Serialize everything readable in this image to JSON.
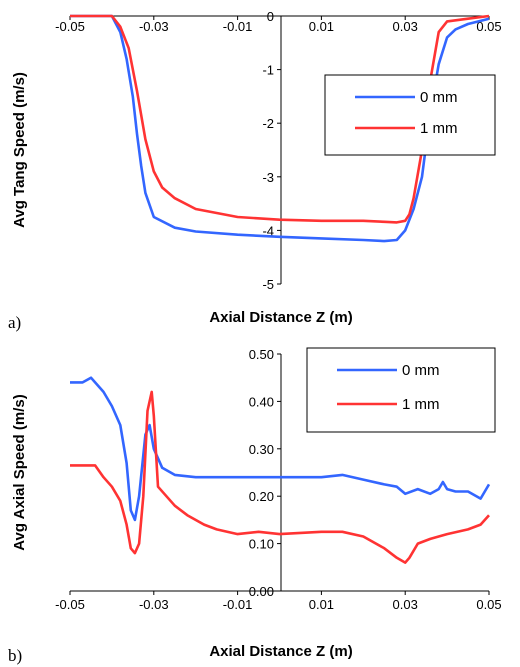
{
  "chart_data": [
    {
      "type": "line",
      "panel_label": "a)",
      "xlabel": "Axial Distance Z (m)",
      "ylabel": "Avg Tang Speed (m/s)",
      "xlim": [
        -0.05,
        0.05
      ],
      "ylim": [
        -5,
        0
      ],
      "x_ticks": [
        "-0.05",
        "-0.03",
        "-0.01",
        "0.01",
        "0.03",
        "0.05"
      ],
      "y_ticks": [
        "0",
        "-1",
        "-2",
        "-3",
        "-4",
        "-5"
      ],
      "grid": false,
      "legend_position": "upper-right",
      "series": [
        {
          "name": "0 mm",
          "color": "#3366ff",
          "x": [
            -0.05,
            -0.046,
            -0.04,
            -0.038,
            -0.0365,
            -0.035,
            -0.034,
            -0.033,
            -0.032,
            -0.03,
            -0.025,
            -0.02,
            -0.01,
            0.0,
            0.01,
            0.02,
            0.025,
            0.028,
            0.03,
            0.032,
            0.034,
            0.036,
            0.038,
            0.04,
            0.042,
            0.045,
            0.05
          ],
          "y": [
            0.0,
            0.0,
            0.0,
            -0.3,
            -0.8,
            -1.5,
            -2.2,
            -2.8,
            -3.3,
            -3.75,
            -3.95,
            -4.02,
            -4.08,
            -4.12,
            -4.15,
            -4.18,
            -4.2,
            -4.18,
            -4.0,
            -3.6,
            -3.0,
            -1.8,
            -0.9,
            -0.4,
            -0.25,
            -0.15,
            -0.05
          ]
        },
        {
          "name": "1 mm",
          "color": "#ff3333",
          "x": [
            -0.05,
            -0.046,
            -0.04,
            -0.038,
            -0.036,
            -0.034,
            -0.032,
            -0.03,
            -0.028,
            -0.025,
            -0.02,
            -0.01,
            0.0,
            0.01,
            0.02,
            0.025,
            0.028,
            0.03,
            0.031,
            0.032,
            0.034,
            0.036,
            0.038,
            0.04,
            0.045,
            0.05
          ],
          "y": [
            0.0,
            0.0,
            0.0,
            -0.2,
            -0.6,
            -1.4,
            -2.3,
            -2.9,
            -3.2,
            -3.4,
            -3.6,
            -3.75,
            -3.8,
            -3.82,
            -3.82,
            -3.84,
            -3.85,
            -3.82,
            -3.7,
            -3.4,
            -2.5,
            -1.2,
            -0.3,
            -0.1,
            -0.05,
            0.0
          ]
        }
      ]
    },
    {
      "type": "line",
      "panel_label": "b)",
      "xlabel": "Axial Distance Z (m)",
      "ylabel": "Avg Axial Speed (m/s)",
      "xlim": [
        -0.05,
        0.05
      ],
      "ylim": [
        0.0,
        0.5
      ],
      "x_ticks": [
        "-0.05",
        "-0.03",
        "-0.01",
        "0.01",
        "0.03",
        "0.05"
      ],
      "y_ticks": [
        "0.50",
        "0.40",
        "0.30",
        "0.20",
        "0.10",
        "0.00"
      ],
      "grid": false,
      "legend_position": "upper-right",
      "series": [
        {
          "name": "0 mm",
          "color": "#3366ff",
          "x": [
            -0.05,
            -0.047,
            -0.045,
            -0.042,
            -0.04,
            -0.038,
            -0.0365,
            -0.0355,
            -0.0345,
            -0.0335,
            -0.032,
            -0.031,
            -0.03,
            -0.028,
            -0.025,
            -0.02,
            -0.01,
            0.0,
            0.01,
            0.015,
            0.02,
            0.025,
            0.028,
            0.03,
            0.033,
            0.036,
            0.038,
            0.039,
            0.04,
            0.042,
            0.045,
            0.048,
            0.05
          ],
          "y": [
            0.44,
            0.44,
            0.45,
            0.42,
            0.39,
            0.35,
            0.27,
            0.17,
            0.15,
            0.2,
            0.33,
            0.35,
            0.3,
            0.26,
            0.245,
            0.24,
            0.24,
            0.24,
            0.24,
            0.245,
            0.235,
            0.225,
            0.22,
            0.205,
            0.215,
            0.205,
            0.215,
            0.23,
            0.215,
            0.21,
            0.21,
            0.195,
            0.225
          ]
        },
        {
          "name": "1 mm",
          "color": "#ff3333",
          "x": [
            -0.05,
            -0.046,
            -0.044,
            -0.042,
            -0.04,
            -0.038,
            -0.0365,
            -0.0355,
            -0.0345,
            -0.0335,
            -0.0325,
            -0.0315,
            -0.0305,
            -0.03,
            -0.029,
            -0.027,
            -0.025,
            -0.022,
            -0.018,
            -0.015,
            -0.01,
            -0.005,
            0.0,
            0.01,
            0.015,
            0.02,
            0.025,
            0.028,
            0.03,
            0.031,
            0.033,
            0.036,
            0.038,
            0.04,
            0.045,
            0.048,
            0.05
          ],
          "y": [
            0.265,
            0.265,
            0.265,
            0.24,
            0.22,
            0.19,
            0.14,
            0.09,
            0.08,
            0.1,
            0.2,
            0.38,
            0.42,
            0.37,
            0.22,
            0.2,
            0.18,
            0.16,
            0.14,
            0.13,
            0.12,
            0.125,
            0.12,
            0.125,
            0.125,
            0.115,
            0.09,
            0.07,
            0.06,
            0.07,
            0.1,
            0.11,
            0.115,
            0.12,
            0.13,
            0.14,
            0.16
          ]
        }
      ]
    }
  ]
}
